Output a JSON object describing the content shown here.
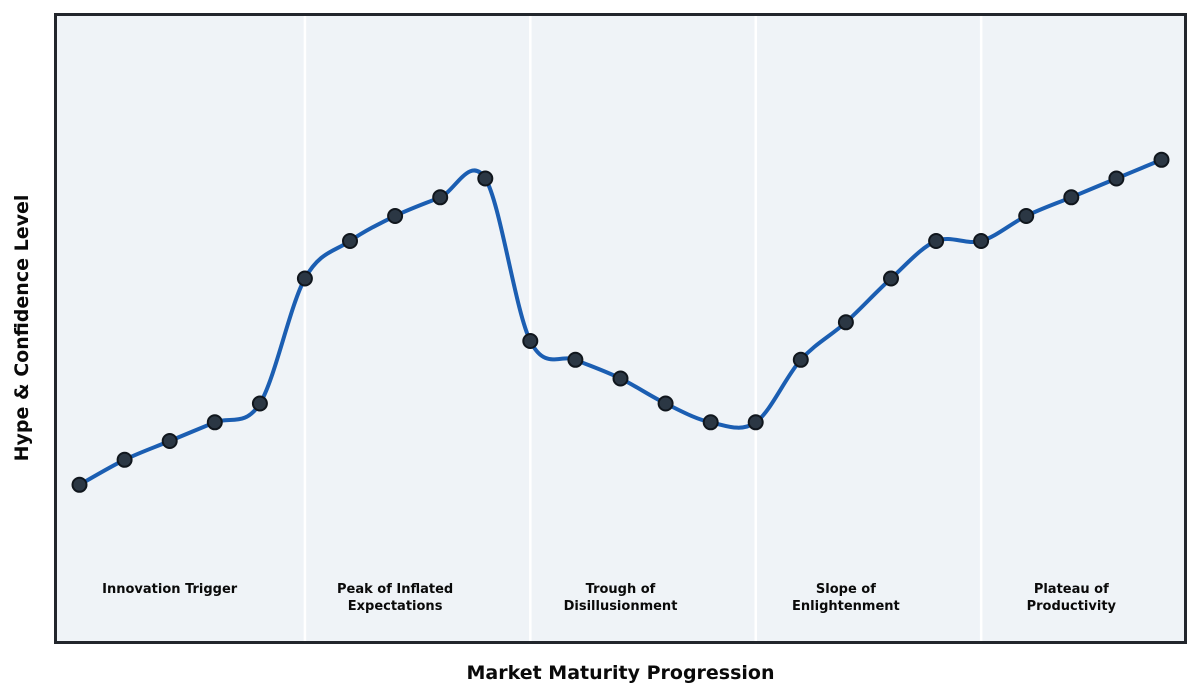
{
  "figure": {
    "kind": "hype-cycle-chart"
  },
  "chart_data": {
    "type": "line",
    "title": "",
    "xlabel": "Market Maturity Progression",
    "ylabel": "Hype & Confidence Level",
    "x": [
      0,
      1,
      2,
      3,
      4,
      5,
      6,
      7,
      8,
      9,
      10,
      11,
      12,
      13,
      14,
      15,
      16,
      17,
      18,
      19,
      20,
      21,
      22,
      23,
      24
    ],
    "series": [
      {
        "name": "Hype & Confidence",
        "values": [
          25,
          29,
          32,
          35,
          38,
          58,
          64,
          68,
          71,
          74,
          48,
          45,
          42,
          38,
          35,
          35,
          45,
          51,
          58,
          64,
          64,
          68,
          71,
          74,
          77
        ]
      }
    ],
    "xlim": [
      -0.5,
      24.5
    ],
    "ylim": [
      0,
      100
    ],
    "grid": false,
    "legend": "none",
    "smoothing": "spline",
    "marker": "circle",
    "phases": [
      {
        "label": "Innovation Trigger",
        "label_lines": [
          "Innovation Trigger"
        ],
        "start": -0.5,
        "end": 5,
        "label_x": 2
      },
      {
        "label": "Peak of Inflated Expectations",
        "label_lines": [
          "Peak of Inflated",
          "Expectations"
        ],
        "start": 5,
        "end": 10,
        "label_x": 7
      },
      {
        "label": "Trough of Disillusionment",
        "label_lines": [
          "Trough of",
          "Disillusionment"
        ],
        "start": 10,
        "end": 15,
        "label_x": 12
      },
      {
        "label": "Slope of Enlightenment",
        "label_lines": [
          "Slope of",
          "Enlightenment"
        ],
        "start": 15,
        "end": 20,
        "label_x": 17
      },
      {
        "label": "Plateau of Productivity",
        "label_lines": [
          "Plateau of",
          "Productivity"
        ],
        "start": 20,
        "end": 24.5,
        "label_x": 22
      }
    ],
    "colors": {
      "line": "#1b5eb2",
      "marker_fill": "#2b3744",
      "marker_edge": "#10161d",
      "plot_background": "#eff3f7",
      "phase_divider": "#ffffff",
      "plot_border": "#22262c",
      "text": "#0a0a0a",
      "page_background": "#ffffff"
    },
    "style": {
      "line_width": 4,
      "marker_radius": 7,
      "marker_edge_width": 2,
      "divider_width": 2.5
    }
  }
}
